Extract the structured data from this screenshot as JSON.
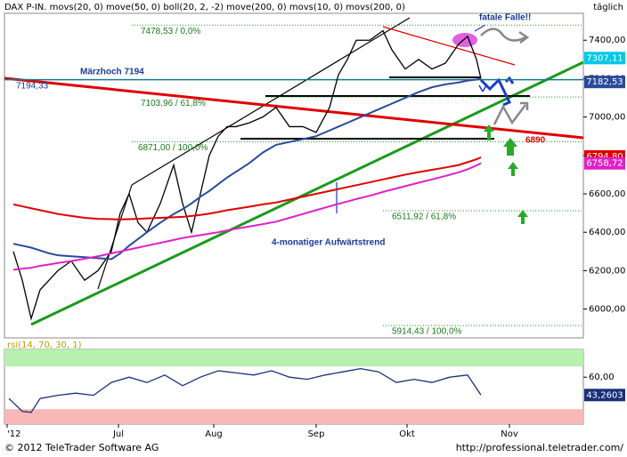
{
  "header": "DAX P-IN. movs(20, 0) move(50, 0) boll(20, 2, -2) move(200, 0) movs(10, 0) movs(200, 0)",
  "period": "täglich",
  "footer_left": "© 2012 TeleTrader Software AG",
  "footer_right": "http://professional.teletrader.com/",
  "notes": {
    "maerzhoch": "Märzhoch 7194",
    "falle": "fatale Falle!!",
    "trend": "4-monatiger Aufwärtstrend",
    "red_level": "6890"
  },
  "chart_data": [
    {
      "type": "line",
      "x": [
        2,
        4,
        6,
        8,
        10,
        12,
        15,
        18,
        21,
        24,
        26,
        28,
        30,
        32,
        35,
        38,
        40,
        42,
        44,
        46,
        48,
        50,
        52,
        55,
        58,
        61,
        64,
        67,
        70,
        73,
        75,
        77,
        79,
        82,
        85,
        87,
        90,
        93,
        96,
        99,
        102,
        104,
        106,
        107
      ],
      "series": [
        {
          "color": "#000000",
          "values": [
            6300,
            6150,
            5950,
            6100,
            6150,
            6200,
            6250,
            6150,
            6200,
            6300,
            6500,
            6600,
            6450,
            6400,
            6550,
            6750,
            6550,
            6400,
            6600,
            6800,
            6900,
            6950,
            6950,
            6970,
            7000,
            7050,
            6950,
            6950,
            6920,
            7050,
            7220,
            7300,
            7400,
            7400,
            7450,
            7350,
            7250,
            7300,
            7250,
            7280,
            7380,
            7420,
            7300,
            7200
          ]
        },
        {
          "color": "#2a4a9a",
          "values": [
            6340,
            6330,
            6320,
            6305,
            6290,
            6280,
            6275,
            6270,
            6265,
            6260,
            6290,
            6330,
            6365,
            6400,
            6450,
            6495,
            6520,
            6550,
            6585,
            6615,
            6650,
            6685,
            6715,
            6760,
            6815,
            6855,
            6870,
            6885,
            6900,
            6930,
            6950,
            6970,
            6990,
            7020,
            7050,
            7070,
            7100,
            7130,
            7155,
            7170,
            7180,
            7190,
            7195,
            7200
          ]
        },
        {
          "color": "#e00000",
          "values": [
            6545,
            6535,
            6525,
            6515,
            6505,
            6495,
            6485,
            6475,
            6470,
            6468,
            6467,
            6468,
            6470,
            6472,
            6475,
            6478,
            6480,
            6485,
            6490,
            6497,
            6505,
            6515,
            6522,
            6533,
            6545,
            6555,
            6570,
            6585,
            6600,
            6615,
            6625,
            6635,
            6645,
            6660,
            6675,
            6685,
            6700,
            6713,
            6725,
            6737,
            6750,
            6765,
            6780,
            6790
          ]
        },
        {
          "color": "#e020c8",
          "values": [
            6205,
            6210,
            6215,
            6225,
            6232,
            6240,
            6250,
            6262,
            6275,
            6290,
            6300,
            6310,
            6320,
            6330,
            6345,
            6360,
            6370,
            6378,
            6385,
            6393,
            6400,
            6410,
            6418,
            6430,
            6442,
            6455,
            6475,
            6495,
            6515,
            6535,
            6548,
            6560,
            6573,
            6590,
            6610,
            6622,
            6640,
            6658,
            6675,
            6693,
            6712,
            6728,
            6748,
            6760
          ]
        }
      ],
      "xlim": [
        0,
        130
      ],
      "xticks": [
        {
          "value": 0.6,
          "label": "'12"
        },
        {
          "value": 25.6,
          "label": "Jul"
        },
        {
          "value": 47,
          "label": "Aug"
        },
        {
          "value": 70,
          "label": "Sep"
        },
        {
          "value": 90.4,
          "label": "Okt"
        },
        {
          "value": 113.4,
          "label": "Nov"
        }
      ],
      "ylim": [
        5850,
        7540
      ],
      "yticks": [
        {
          "value": 6000,
          "label": "6000,00"
        },
        {
          "value": 6200,
          "label": "6200,00"
        },
        {
          "value": 6400,
          "label": "6400,00"
        },
        {
          "value": 6600,
          "label": "6600,00"
        },
        {
          "value": 6800,
          "label": "6800,00"
        },
        {
          "value": 7000,
          "label": "7000,00"
        },
        {
          "value": 7200,
          "label": "7200,00"
        },
        {
          "value": 7400,
          "label": "7400,00"
        }
      ],
      "fib_levels": [
        {
          "value": 7478.53,
          "label": "7478,53 / 0,0%"
        },
        {
          "value": 7103.96,
          "label": "7103,96 / 61,8%"
        },
        {
          "value": 6871,
          "label": "6871,00 / 100,0%"
        },
        {
          "value": 6511.92,
          "label": "6511,92 / 61,8%"
        },
        {
          "value": 5914.43,
          "label": "5914,43 / 100,0%"
        }
      ],
      "hline": {
        "value": 7194.33,
        "label": "7194,33"
      },
      "last_values": [
        {
          "value": 7307.11,
          "label": "7307,11",
          "color": "#00c8e8"
        },
        {
          "value": 7182.53,
          "label": "7182,53",
          "color": "#2a4a9a"
        },
        {
          "value": 6794.8,
          "label": "6794,80",
          "color": "#e00000"
        },
        {
          "value": 6758.72,
          "label": "6758,72",
          "color": "#e020c8"
        }
      ]
    },
    {
      "type": "line",
      "title": "rsi(14, 70, 30, 1)",
      "upper": 70,
      "lower": 30,
      "x": [
        1,
        4,
        6,
        8,
        12,
        16,
        20,
        24,
        28,
        32,
        36,
        40,
        44,
        48,
        52,
        56,
        60,
        64,
        68,
        72,
        76,
        80,
        84,
        88,
        92,
        96,
        100,
        104,
        107
      ],
      "series": [
        {
          "color": "#1a2f7a",
          "values": [
            40,
            28,
            27,
            40,
            43,
            45,
            43,
            55,
            60,
            55,
            62,
            52,
            60,
            66,
            64,
            62,
            66,
            60,
            58,
            62,
            65,
            68,
            65,
            55,
            58,
            55,
            60,
            62,
            43.2603
          ],
          "value_labels": [
            null,
            null,
            null,
            null,
            null,
            null,
            null,
            null,
            null,
            null,
            null,
            null,
            null,
            null,
            null,
            null,
            null,
            null,
            null,
            null,
            null,
            null,
            null,
            null,
            null,
            null,
            null,
            null,
            "43,2603"
          ]
        }
      ],
      "xlim": [
        0,
        130
      ],
      "ylim": [
        16,
        86
      ],
      "yticks": [
        {
          "value": 60,
          "label": "60,00"
        }
      ]
    }
  ]
}
